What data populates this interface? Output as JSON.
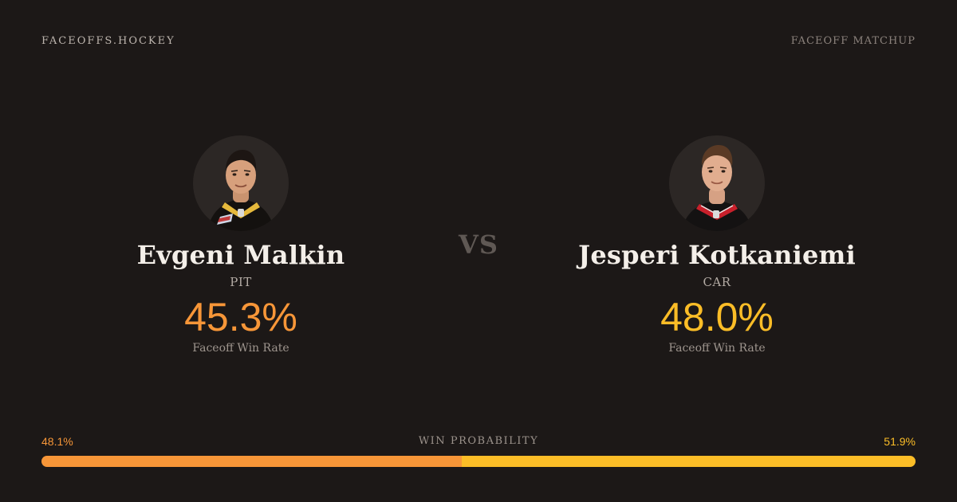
{
  "brand": "FACEOFFS.HOCKEY",
  "page_label": "FACEOFF MATCHUP",
  "vs_label": "VS",
  "players": [
    {
      "name": "Evgeni Malkin",
      "team": "PIT",
      "rate": "45.3%",
      "rate_label": "Faceoff Win Rate",
      "color": "#f79638",
      "avatar_icon": "player-headshot"
    },
    {
      "name": "Jesperi Kotkaniemi",
      "team": "CAR",
      "rate": "48.0%",
      "rate_label": "Faceoff Win Rate",
      "color": "#fbbd27",
      "avatar_icon": "player-headshot"
    }
  ],
  "win_probability": {
    "title": "WIN PROBABILITY",
    "left_label": "48.1%",
    "right_label": "51.9%",
    "left_value": 48.1,
    "right_value": 51.9,
    "left_color": "#f79638",
    "right_color": "#fbbd27"
  }
}
